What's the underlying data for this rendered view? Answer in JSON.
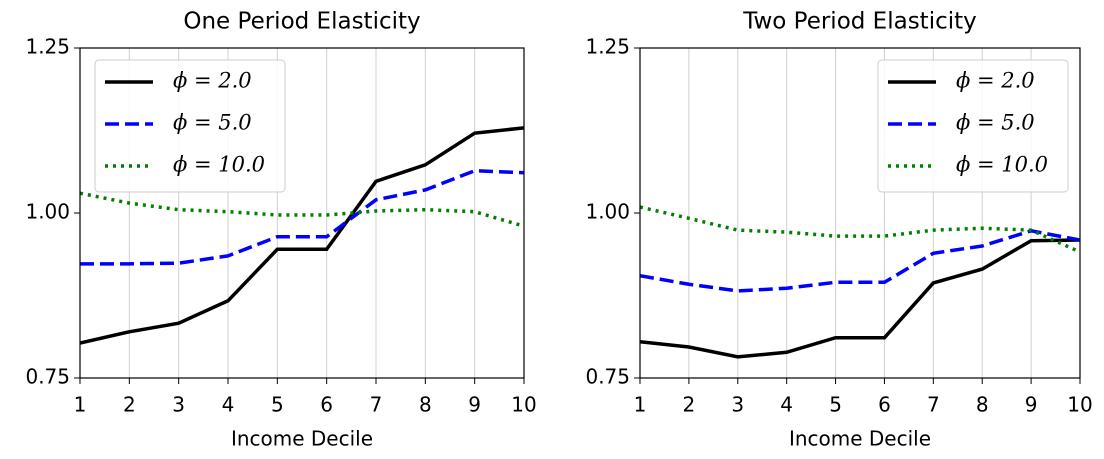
{
  "chart_data": [
    {
      "type": "line",
      "title": "One Period Elasticity",
      "xlabel": "Income Decile",
      "x": [
        1,
        2,
        3,
        4,
        5,
        6,
        7,
        8,
        9,
        10
      ],
      "xlim": [
        1,
        10
      ],
      "xticks": [
        1,
        2,
        3,
        4,
        5,
        6,
        7,
        8,
        9,
        10
      ],
      "ylim": [
        0.75,
        1.25
      ],
      "yticks": [
        {
          "value": 0.75,
          "label": "0.75"
        },
        {
          "value": 1.0,
          "label": "1.00"
        },
        {
          "value": 1.25,
          "label": "1.25"
        }
      ],
      "grid": "x",
      "legend": "upper left",
      "series": [
        {
          "name": "ϕ = 2.0",
          "color": "#000000",
          "style": "solid",
          "values": [
            0.803,
            0.82,
            0.833,
            0.867,
            0.945,
            0.945,
            1.048,
            1.073,
            1.121,
            1.129
          ]
        },
        {
          "name": "ϕ = 5.0",
          "color": "#0000ff",
          "style": "dashed",
          "values": [
            0.923,
            0.923,
            0.924,
            0.935,
            0.964,
            0.964,
            1.02,
            1.035,
            1.064,
            1.061
          ]
        },
        {
          "name": "ϕ = 10.0",
          "color": "#008000",
          "style": "dotted",
          "values": [
            1.03,
            1.015,
            1.005,
            1.002,
            0.997,
            0.997,
            1.003,
            1.005,
            1.002,
            0.98
          ]
        }
      ]
    },
    {
      "type": "line",
      "title": "Two Period Elasticity",
      "xlabel": "Income Decile",
      "x": [
        1,
        2,
        3,
        4,
        5,
        6,
        7,
        8,
        9,
        10
      ],
      "xlim": [
        1,
        10
      ],
      "xticks": [
        1,
        2,
        3,
        4,
        5,
        6,
        7,
        8,
        9,
        10
      ],
      "ylim": [
        0.75,
        1.25
      ],
      "yticks": [
        {
          "value": 0.75,
          "label": "0.75"
        },
        {
          "value": 1.0,
          "label": "1.00"
        },
        {
          "value": 1.25,
          "label": "1.25"
        }
      ],
      "grid": "x",
      "legend": "upper right",
      "series": [
        {
          "name": "ϕ = 2.0",
          "color": "#000000",
          "style": "solid",
          "values": [
            0.805,
            0.797,
            0.782,
            0.789,
            0.811,
            0.811,
            0.894,
            0.915,
            0.958,
            0.959
          ]
        },
        {
          "name": "ϕ = 5.0",
          "color": "#0000ff",
          "style": "dashed",
          "values": [
            0.905,
            0.892,
            0.882,
            0.886,
            0.895,
            0.895,
            0.939,
            0.95,
            0.973,
            0.959
          ]
        },
        {
          "name": "ϕ = 10.0",
          "color": "#008000",
          "style": "dotted",
          "values": [
            1.009,
            0.992,
            0.974,
            0.971,
            0.965,
            0.965,
            0.974,
            0.977,
            0.974,
            0.941
          ]
        }
      ]
    }
  ]
}
